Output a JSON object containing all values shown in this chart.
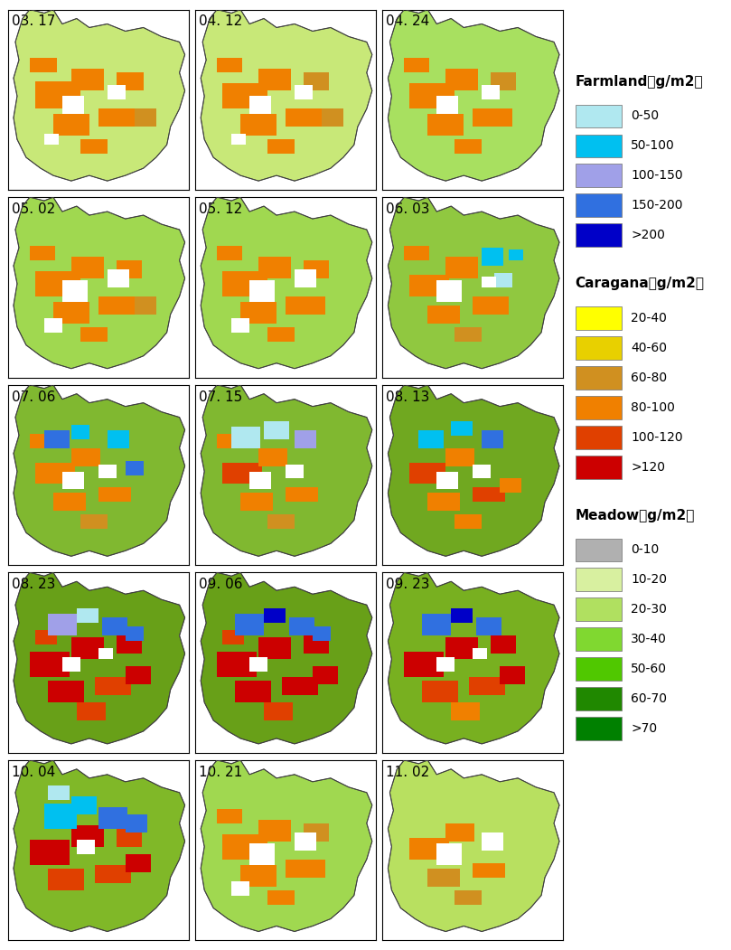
{
  "panel_labels": [
    "03. 17",
    "04. 12",
    "04. 24",
    "05. 02",
    "05. 12",
    "06. 03",
    "07. 06",
    "07. 15",
    "08. 13",
    "08. 23",
    "09. 06",
    "09. 23",
    "10. 04",
    "10. 21",
    "11. 02"
  ],
  "nrows": 5,
  "ncols": 3,
  "farmland_title": "Farmland（g/m2）",
  "farmland_colors": [
    "#b0e8f0",
    "#00c0f0",
    "#a0a0e8",
    "#3070e0",
    "#0000c8"
  ],
  "farmland_labels": [
    "0-50",
    "50-100",
    "100-150",
    "150-200",
    ">200"
  ],
  "caragana_title": "Caragana（g/m2）",
  "caragana_colors": [
    "#ffff00",
    "#e8d000",
    "#d09020",
    "#f08000",
    "#e04000",
    "#cc0000"
  ],
  "caragana_labels": [
    "20-40",
    "40-60",
    "60-80",
    "80-100",
    "100-120",
    ">120"
  ],
  "meadow_title": "Meadow（g/m2）",
  "meadow_colors": [
    "#b0b0b0",
    "#d8f0a0",
    "#b0e060",
    "#80d830",
    "#50c800",
    "#208800",
    "#008000"
  ],
  "meadow_labels": [
    "0-10",
    "10-20",
    "20-30",
    "30-40",
    "50-60",
    "60-70",
    ">70"
  ],
  "bg_color": "#ffffff",
  "border_color": "#000000",
  "label_fontsize": 11,
  "legend_title_fontsize": 11,
  "legend_label_fontsize": 10
}
